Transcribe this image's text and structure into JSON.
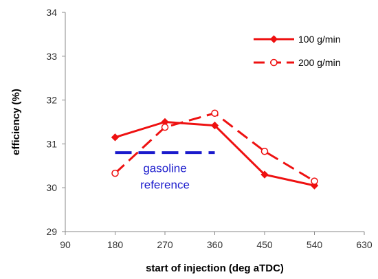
{
  "chart_data": {
    "type": "line",
    "xlabel": "start of injection (deg aTDC)",
    "ylabel": "efficiency (%)",
    "xlim": [
      90,
      630
    ],
    "ylim": [
      29,
      34
    ],
    "x_ticks": [
      "90",
      "180",
      "270",
      "360",
      "450",
      "540",
      "630"
    ],
    "y_ticks": [
      "29",
      "30",
      "31",
      "32",
      "33",
      "34"
    ],
    "grid": false,
    "legend_position": "top-right",
    "series": [
      {
        "name": "100 g/min",
        "color": "#ee1111",
        "line": "solid",
        "marker": "filled-diamond",
        "x": [
          180,
          270,
          360,
          450,
          540
        ],
        "y": [
          31.15,
          31.5,
          31.42,
          30.3,
          30.05
        ]
      },
      {
        "name": "200 g/min",
        "color": "#ee1111",
        "line": "dashed",
        "marker": "open-circle",
        "x": [
          180,
          270,
          360,
          450,
          540
        ],
        "y": [
          30.33,
          31.38,
          31.7,
          30.83,
          30.15
        ]
      }
    ],
    "reference_line": {
      "color": "#1a1acc",
      "line": "dashed",
      "x": [
        180,
        360
      ],
      "y": 30.8
    },
    "annotations": [
      {
        "lines": [
          "gasoline",
          "reference"
        ],
        "color": "#1a1acc",
        "x": 270,
        "y": 30.2
      }
    ]
  }
}
